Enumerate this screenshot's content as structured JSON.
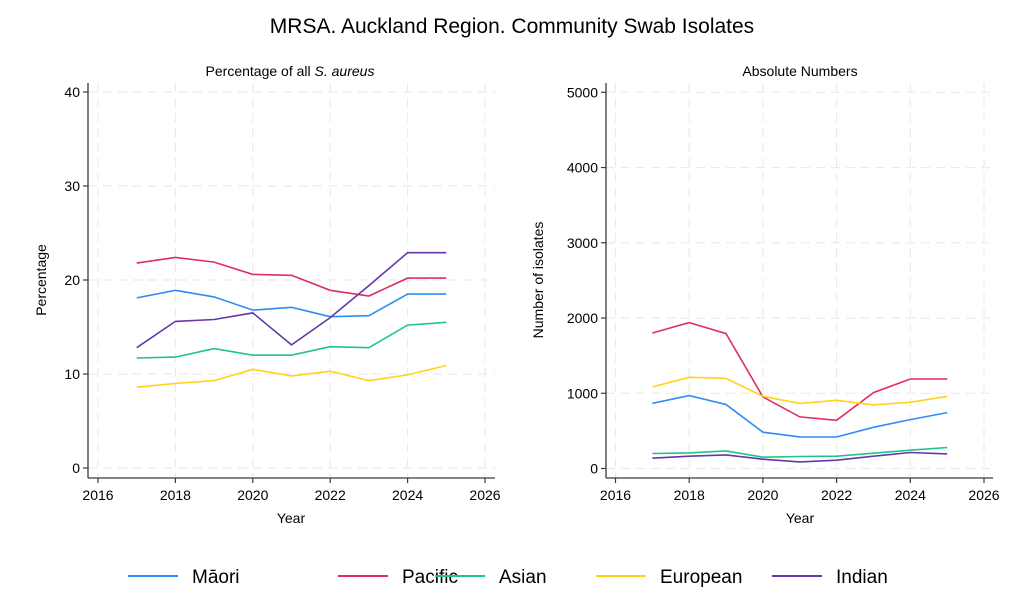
{
  "figure": {
    "title": "MRSA. Auckland Region. Community Swab Isolates"
  },
  "legend": {
    "position": "bottom",
    "items": [
      {
        "label": "Māori",
        "color": "#2f8cf4"
      },
      {
        "label": "Pacific",
        "color": "#dd2e66"
      },
      {
        "label": "Asian",
        "color": "#1ec48c"
      },
      {
        "label": "European",
        "color": "#ffd316"
      },
      {
        "label": "Indian",
        "color": "#6438ad"
      }
    ]
  },
  "chart_data": [
    {
      "type": "line",
      "title": "Percentage of all",
      "title_italic": "S. aureus",
      "xlabel": "Year",
      "ylabel": "Percentage",
      "xlim": [
        2016,
        2026
      ],
      "ylim": [
        0,
        40
      ],
      "xticks": [
        2016,
        2018,
        2020,
        2022,
        2024,
        2026
      ],
      "yticks": [
        0,
        10,
        20,
        30,
        40
      ],
      "grid": true,
      "x": [
        2017,
        2018,
        2019,
        2020,
        2021,
        2022,
        2023,
        2024,
        2025
      ],
      "series": [
        {
          "name": "Māori",
          "values": [
            18.1,
            18.9,
            18.2,
            16.8,
            17.1,
            16.1,
            16.2,
            18.5,
            18.5
          ]
        },
        {
          "name": "Pacific",
          "values": [
            21.8,
            22.4,
            21.9,
            20.6,
            20.5,
            18.9,
            18.3,
            20.2,
            20.2
          ]
        },
        {
          "name": "Asian",
          "values": [
            11.7,
            11.8,
            12.7,
            12.0,
            12.0,
            12.9,
            12.8,
            15.2,
            15.5
          ]
        },
        {
          "name": "European",
          "values": [
            8.6,
            9.0,
            9.3,
            10.5,
            9.8,
            10.3,
            9.3,
            9.9,
            10.9
          ]
        },
        {
          "name": "Indian",
          "values": [
            12.8,
            15.6,
            15.8,
            16.5,
            13.1,
            16.0,
            19.4,
            22.9,
            22.9
          ]
        }
      ]
    },
    {
      "type": "line",
      "title": "Absolute Numbers",
      "title_italic": "",
      "xlabel": "Year",
      "ylabel": "Number of isolates",
      "xlim": [
        2016,
        2026
      ],
      "ylim": [
        0,
        5000
      ],
      "xticks": [
        2016,
        2018,
        2020,
        2022,
        2024,
        2026
      ],
      "yticks": [
        0,
        1000,
        2000,
        3000,
        4000,
        5000
      ],
      "grid": true,
      "x": [
        2017,
        2018,
        2019,
        2020,
        2021,
        2022,
        2023,
        2024,
        2025
      ],
      "series": [
        {
          "name": "Māori",
          "values": [
            867,
            969,
            850,
            482,
            420,
            418,
            548,
            650,
            743
          ]
        },
        {
          "name": "Pacific",
          "values": [
            1801,
            1939,
            1793,
            951,
            686,
            641,
            1009,
            1190,
            1190
          ]
        },
        {
          "name": "Asian",
          "values": [
            199,
            207,
            234,
            150,
            159,
            163,
            203,
            243,
            279
          ]
        },
        {
          "name": "European",
          "values": [
            1084,
            1212,
            1199,
            960,
            865,
            907,
            845,
            880,
            960
          ]
        },
        {
          "name": "Indian",
          "values": [
            137,
            163,
            181,
            124,
            88,
            110,
            163,
            212,
            194
          ]
        }
      ]
    }
  ]
}
